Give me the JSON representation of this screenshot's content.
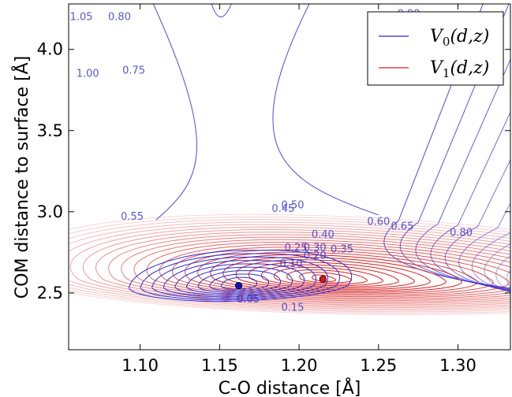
{
  "chart_data": {
    "type": "contour",
    "title": "",
    "xlabel": "C-O distance [Å]",
    "ylabel": "COM distance to surface [Å]",
    "xlim": [
      1.055,
      1.333
    ],
    "ylim": [
      2.15,
      4.28
    ],
    "xticks": [
      "1.10",
      "1.15",
      "1.20",
      "1.25",
      "1.30"
    ],
    "yticks": [
      "2.5",
      "3.0",
      "3.5",
      "4.0"
    ],
    "grid": false,
    "legend_position": "top-right",
    "legend": [
      {
        "label": "V0(d,z)",
        "base": "V",
        "sub": "0",
        "args": "(d,z)",
        "color": "#2b2bd6"
      },
      {
        "label": "V1(d,z)",
        "base": "V",
        "sub": "1",
        "args": "(d,z)",
        "color": "#d62020"
      }
    ],
    "series": [
      {
        "name": "V0(d,z)",
        "color": "#2b2bd6",
        "minimum": {
          "x": 1.162,
          "y": 2.545
        }
      },
      {
        "name": "V1(d,z)",
        "color": "#d62020",
        "minimum": {
          "x": 1.215,
          "y": 2.585
        }
      }
    ],
    "contour_labels": [
      {
        "text": "0.05",
        "x": 1.168,
        "y": 2.44,
        "series": "V0(d,z)"
      },
      {
        "text": "0.10",
        "x": 1.195,
        "y": 2.66,
        "series": "V0(d,z)"
      },
      {
        "text": "0.15",
        "x": 1.196,
        "y": 2.39,
        "series": "V0(d,z)"
      },
      {
        "text": "0.20",
        "x": 1.21,
        "y": 2.71,
        "series": "V0(d,z)"
      },
      {
        "text": "0.25",
        "x": 1.198,
        "y": 2.76,
        "series": "V0(d,z)"
      },
      {
        "text": "0.30",
        "x": 1.21,
        "y": 2.76,
        "series": "V0(d,z)"
      },
      {
        "text": "0.35",
        "x": 1.227,
        "y": 2.75,
        "series": "V0(d,z)"
      },
      {
        "text": "0.40",
        "x": 1.215,
        "y": 2.84,
        "series": "V0(d,z)"
      },
      {
        "text": "0.45",
        "x": 1.19,
        "y": 3.0,
        "series": "V0(d,z)"
      },
      {
        "text": "0.50",
        "x": 1.196,
        "y": 3.02,
        "series": "V0(d,z)"
      },
      {
        "text": "0.55",
        "x": 1.095,
        "y": 2.95,
        "series": "V0(d,z)"
      },
      {
        "text": "0.60",
        "x": 1.25,
        "y": 2.92,
        "series": "V0(d,z)"
      },
      {
        "text": "0.65",
        "x": 1.265,
        "y": 2.89,
        "series": "V0(d,z)"
      },
      {
        "text": "0.75",
        "x": 1.096,
        "y": 3.85,
        "series": "V0(d,z)"
      },
      {
        "text": "0.80",
        "x": 1.087,
        "y": 4.18,
        "series": "V0(d,z)"
      },
      {
        "text": "0.80",
        "x": 1.302,
        "y": 2.85,
        "series": "V0(d,z)"
      },
      {
        "text": "0.90",
        "x": 1.269,
        "y": 4.2,
        "series": "V0(d,z)"
      },
      {
        "text": "1.00",
        "x": 1.067,
        "y": 3.83,
        "series": "V0(d,z)"
      },
      {
        "text": "1.05",
        "x": 1.063,
        "y": 4.18,
        "series": "V0(d,z)"
      }
    ]
  }
}
